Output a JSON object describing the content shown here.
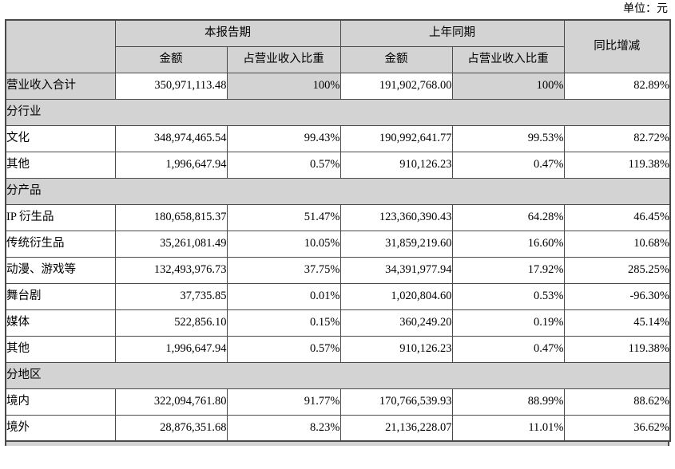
{
  "unit_label": "单位：元",
  "table": {
    "header": {
      "current_period": "本报告期",
      "prior_period": "上年同期",
      "yoy_change": "同比增减",
      "amount_current": "金额",
      "pct_current": "占营业收入比重",
      "amount_prior": "金额",
      "pct_prior": "占营业收入比重"
    },
    "rows": [
      {
        "type": "data",
        "shaded": true,
        "label": "营业收入合计",
        "cur_amount": "350,971,113.48",
        "cur_pct": "100%",
        "prior_amount": "191,902,768.00",
        "prior_pct": "100%",
        "yoy": "82.89%"
      },
      {
        "type": "section",
        "label": "分行业"
      },
      {
        "type": "data",
        "shaded": false,
        "label": "文化",
        "cur_amount": "348,974,465.54",
        "cur_pct": "99.43%",
        "prior_amount": "190,992,641.77",
        "prior_pct": "99.53%",
        "yoy": "82.72%"
      },
      {
        "type": "data",
        "shaded": false,
        "label": "其他",
        "cur_amount": "1,996,647.94",
        "cur_pct": "0.57%",
        "prior_amount": "910,126.23",
        "prior_pct": "0.47%",
        "yoy": "119.38%"
      },
      {
        "type": "section",
        "label": "分产品"
      },
      {
        "type": "data",
        "shaded": false,
        "label": "IP 衍生品",
        "cur_amount": "180,658,815.37",
        "cur_pct": "51.47%",
        "prior_amount": "123,360,390.43",
        "prior_pct": "64.28%",
        "yoy": "46.45%"
      },
      {
        "type": "data",
        "shaded": false,
        "label": "传统衍生品",
        "cur_amount": "35,261,081.49",
        "cur_pct": "10.05%",
        "prior_amount": "31,859,219.60",
        "prior_pct": "16.60%",
        "yoy": "10.68%"
      },
      {
        "type": "data",
        "shaded": false,
        "label": "动漫、游戏等",
        "cur_amount": "132,493,976.73",
        "cur_pct": "37.75%",
        "prior_amount": "34,391,977.94",
        "prior_pct": "17.92%",
        "yoy": "285.25%"
      },
      {
        "type": "data",
        "shaded": false,
        "label": "舞台剧",
        "cur_amount": "37,735.85",
        "cur_pct": "0.01%",
        "prior_amount": "1,020,804.60",
        "prior_pct": "0.53%",
        "yoy": "-96.30%"
      },
      {
        "type": "data",
        "shaded": false,
        "label": "媒体",
        "cur_amount": "522,856.10",
        "cur_pct": "0.15%",
        "prior_amount": "360,249.20",
        "prior_pct": "0.19%",
        "yoy": "45.14%"
      },
      {
        "type": "data",
        "shaded": false,
        "label": "其他",
        "cur_amount": "1,996,647.94",
        "cur_pct": "0.57%",
        "prior_amount": "910,126.23",
        "prior_pct": "0.47%",
        "yoy": "119.38%"
      },
      {
        "type": "section",
        "label": "分地区"
      },
      {
        "type": "data",
        "shaded": false,
        "label": "境内",
        "cur_amount": "322,094,761.80",
        "cur_pct": "91.77%",
        "prior_amount": "170,766,539.93",
        "prior_pct": "88.99%",
        "yoy": "88.62%"
      },
      {
        "type": "data",
        "shaded": false,
        "label": "境外",
        "cur_amount": "28,876,351.68",
        "cur_pct": "8.23%",
        "prior_amount": "21,136,228.07",
        "prior_pct": "11.01%",
        "yoy": "36.62%"
      }
    ]
  }
}
